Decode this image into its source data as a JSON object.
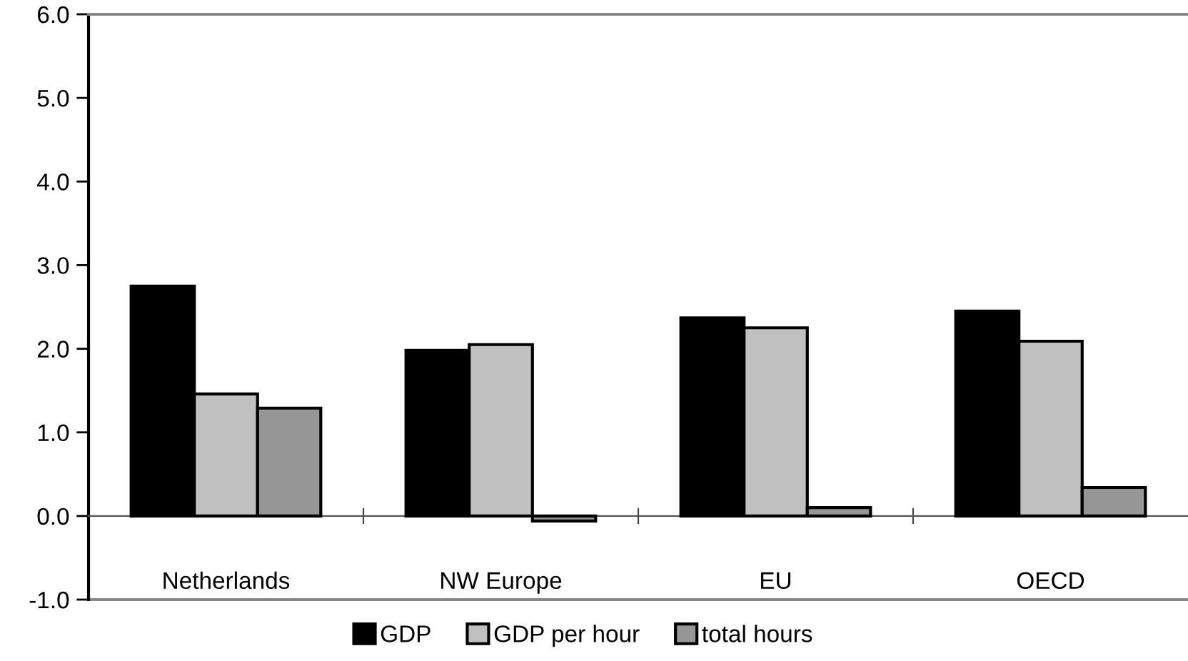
{
  "chart_data": {
    "type": "bar",
    "categories": [
      "Netherlands",
      "NW Europe",
      "EU",
      "OECD"
    ],
    "series": [
      {
        "name": "GDP",
        "color": "#000000",
        "values": [
          2.75,
          1.98,
          2.37,
          2.45
        ]
      },
      {
        "name": "GDP per hour",
        "color": "#c0c0c0",
        "values": [
          1.46,
          2.05,
          2.25,
          2.09
        ]
      },
      {
        "name": "total hours",
        "color": "#969696",
        "values": [
          1.29,
          -0.06,
          0.1,
          0.34
        ]
      }
    ],
    "ylim": [
      -1,
      6
    ],
    "yticks": [
      {
        "value": -1,
        "label": "-1.0"
      },
      {
        "value": 0,
        "label": "0.0"
      },
      {
        "value": 1,
        "label": "1.0"
      },
      {
        "value": 2,
        "label": "2.0"
      },
      {
        "value": 3,
        "label": "3.0"
      },
      {
        "value": 4,
        "label": "4.0"
      },
      {
        "value": 5,
        "label": "5.0"
      },
      {
        "value": 6,
        "label": "6.0"
      }
    ],
    "legend": "bottom"
  }
}
